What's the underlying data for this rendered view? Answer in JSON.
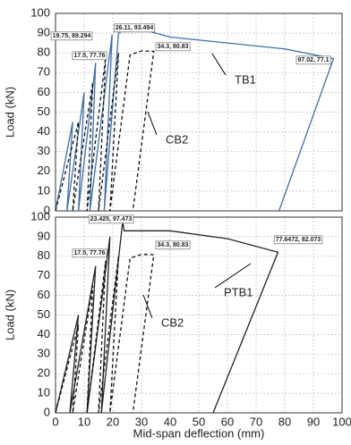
{
  "chart_data": [
    {
      "type": "line",
      "y_label": "Load (kN)",
      "ylim": [
        0,
        100
      ],
      "yticks": [
        0,
        10,
        20,
        30,
        40,
        50,
        60,
        70,
        80,
        90,
        100
      ],
      "xlim": [
        0,
        100
      ],
      "grid": true,
      "annotations": [
        "19.75, 89.294",
        "26.11, 93.494",
        "17.5, 77.76",
        "34.3, 80.83",
        "97.02, 77.1"
      ],
      "series": [
        {
          "name": "TB1",
          "color": "#3d6eab",
          "dashed": false,
          "x": [
            0,
            6,
            4,
            10,
            8,
            14,
            12,
            19.75,
            17,
            22,
            26.11,
            40,
            60,
            80,
            97.02,
            78
          ],
          "values": [
            0,
            45,
            0,
            60,
            0,
            75,
            0,
            89.294,
            0,
            90,
            93.494,
            88,
            85,
            82,
            77.1,
            0
          ]
        },
        {
          "name": "CB2",
          "color": "#111111",
          "dashed": true,
          "x": [
            0,
            8,
            6,
            13,
            11,
            17.5,
            15,
            22,
            19,
            26,
            30,
            34.3,
            27
          ],
          "values": [
            0,
            45,
            0,
            65,
            0,
            77.76,
            0,
            80,
            0,
            79,
            81,
            80.83,
            0
          ]
        }
      ]
    },
    {
      "type": "line",
      "y_label": "Load (kN)",
      "x_label": "Mid-span deflection (mm)",
      "ylim": [
        0,
        100
      ],
      "yticks": [
        0,
        10,
        20,
        30,
        40,
        50,
        60,
        70,
        80,
        90,
        100
      ],
      "xlim": [
        0,
        100
      ],
      "xticks": [
        0,
        10,
        20,
        30,
        40,
        50,
        60,
        70,
        80,
        90,
        100
      ],
      "grid": true,
      "annotations": [
        "23.425, 97.473",
        "17.5, 77.76",
        "34.3, 80.83",
        "77.6472, 82.073"
      ],
      "series": [
        {
          "name": "PTB1",
          "color": "#222222",
          "dashed": false,
          "x": [
            0,
            8,
            5,
            14,
            11,
            19,
            16,
            23.425,
            24,
            40,
            60,
            77.6472,
            55
          ],
          "values": [
            0,
            50,
            0,
            75,
            0,
            90,
            0,
            97.473,
            93,
            93,
            89,
            82.073,
            0
          ]
        },
        {
          "name": "CB2",
          "color": "#111111",
          "dashed": true,
          "x": [
            0,
            8,
            6,
            13,
            11,
            17.5,
            15,
            22,
            19,
            26,
            30,
            34.3,
            27
          ],
          "values": [
            0,
            45,
            0,
            65,
            0,
            77.76,
            0,
            80,
            0,
            79,
            81,
            80.83,
            0
          ]
        }
      ]
    }
  ]
}
